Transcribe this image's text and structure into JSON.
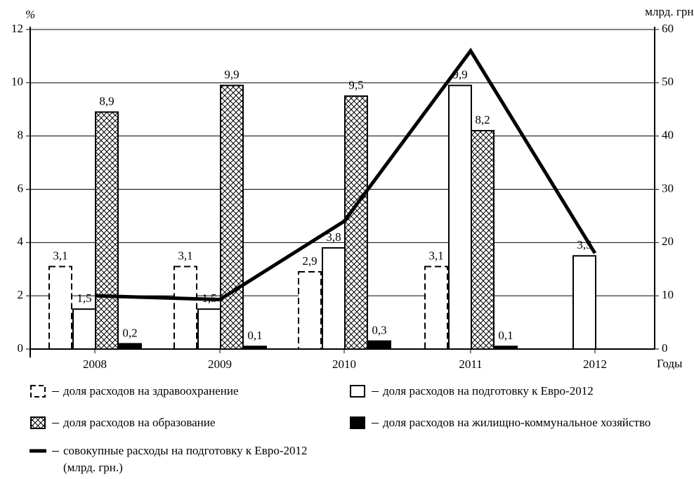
{
  "chart_data": {
    "type": "bar",
    "y_label": "%",
    "y2_label": "млрд. грн.",
    "x_label": "Годы",
    "categories": [
      "2008",
      "2009",
      "2010",
      "2011",
      "2012"
    ],
    "ylim": [
      0,
      12
    ],
    "yticks": [
      0,
      2,
      4,
      6,
      8,
      10,
      12
    ],
    "y2lim": [
      0,
      60
    ],
    "y2ticks": [
      0,
      10,
      20,
      30,
      40,
      50,
      60
    ],
    "grid": true,
    "series": [
      {
        "name": "доля расходов на здравоохранение",
        "color": "#ffffff",
        "pattern": "dashed",
        "values": [
          3.1,
          3.1,
          2.9,
          3.1,
          null
        ],
        "value_labels": [
          "3,1",
          "3,1",
          "2,9",
          "3,1",
          null
        ]
      },
      {
        "name": "доля расходов на подготовку к Евро-2012",
        "color": "#ffffff",
        "pattern": "solid",
        "values": [
          1.5,
          1.5,
          3.8,
          9.9,
          3.5
        ],
        "value_labels": [
          "1,5",
          "1,5",
          "3,8",
          "9,9",
          "3,5"
        ]
      },
      {
        "name": "доля расходов на образование",
        "color": "#ffffff",
        "pattern": "crosshatch",
        "values": [
          8.9,
          9.9,
          9.5,
          8.2,
          null
        ],
        "value_labels": [
          "8,9",
          "9,9",
          "9,5",
          "8,2",
          null
        ]
      },
      {
        "name": "доля расходов на жилищно-коммунальное хозяйство",
        "color": "#000000",
        "pattern": "solid",
        "values": [
          0.2,
          0.1,
          0.3,
          0.1,
          null
        ],
        "value_labels": [
          "0,2",
          "0,1",
          "0,3",
          "0,1",
          null
        ]
      },
      {
        "name": "совокупные расходы на подготовку к Евро-2012 (млрд. грн.)",
        "color": "#000000",
        "type": "line",
        "axis": "y2",
        "values": [
          10,
          9.3,
          24,
          56,
          18
        ]
      }
    ]
  }
}
